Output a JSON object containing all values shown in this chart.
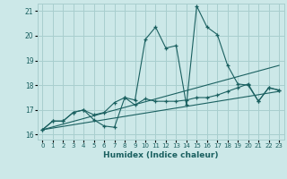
{
  "xlabel": "Humidex (Indice chaleur)",
  "xlim": [
    -0.5,
    23.5
  ],
  "ylim": [
    15.8,
    21.3
  ],
  "yticks": [
    16,
    17,
    18,
    19,
    20,
    21
  ],
  "xticks": [
    0,
    1,
    2,
    3,
    4,
    5,
    6,
    7,
    8,
    9,
    10,
    11,
    12,
    13,
    14,
    15,
    16,
    17,
    18,
    19,
    20,
    21,
    22,
    23
  ],
  "bg_color": "#cce8e8",
  "grid_color": "#a8cece",
  "line_color": "#1a6060",
  "line1_y": [
    16.2,
    16.55,
    16.55,
    16.9,
    17.0,
    16.6,
    16.35,
    16.3,
    17.5,
    17.4,
    19.85,
    20.35,
    19.5,
    19.6,
    17.2,
    21.2,
    20.35,
    20.05,
    18.8,
    18.05,
    18.0,
    17.35,
    17.9,
    17.8
  ],
  "line2_y": [
    16.2,
    16.55,
    16.55,
    16.9,
    17.0,
    16.8,
    16.9,
    17.3,
    17.5,
    17.2,
    17.45,
    17.35,
    17.35,
    17.35,
    17.4,
    17.5,
    17.5,
    17.6,
    17.75,
    17.9,
    18.05,
    17.35,
    17.9,
    17.8
  ],
  "line3_y_start": 16.2,
  "line3_y_end": 18.8,
  "line4_y_start": 16.2,
  "line4_y_end": 17.75
}
